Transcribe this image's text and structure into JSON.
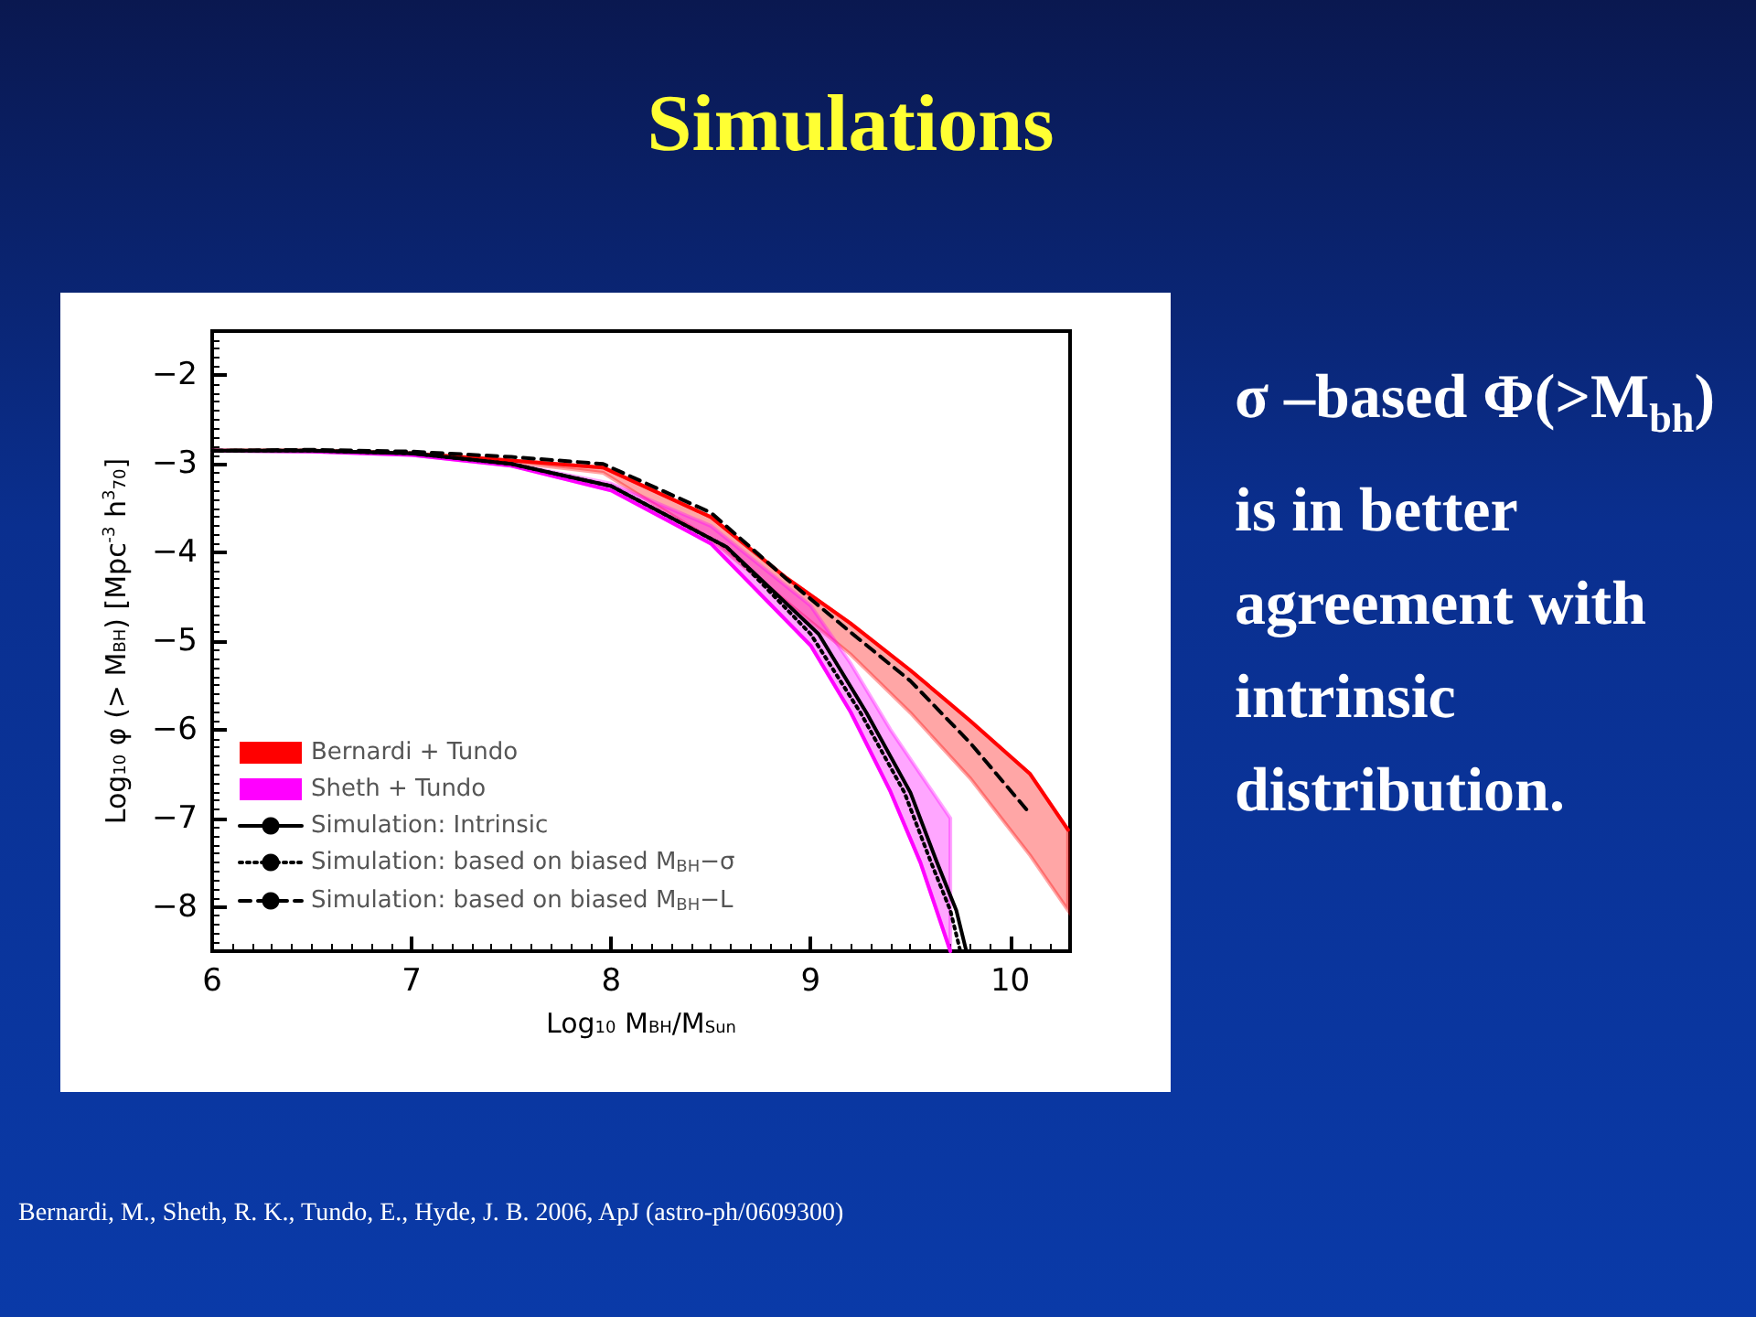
{
  "chart_data": {
    "type": "line",
    "title": "Simulations",
    "xlabel": "Log$_{10}$ M$_{BH}$/M$_{Sun}$",
    "ylabel": "Log$_{10}$ φ (> M$_{BH}$) [Mpc$^{-3}$ h$^{3}$$_{70}$]",
    "annotations": [
      "σ –based Φ(>M$_{bh}$) is in better agreement with intrinsic distribution.",
      "Bernardi, M., Sheth, R. K., Tundo, E., Hyde, J. B. 2006, ApJ (astro-ph/0609300)"
    ],
    "xlim": [
      6,
      10.3
    ],
    "xticks": [
      6,
      7,
      8,
      9,
      10
    ],
    "ylim": [
      -8.5,
      -1.5
    ],
    "yticks": [
      -2,
      -3,
      -4,
      -5,
      -6,
      -7,
      -8
    ],
    "grid": false,
    "legend": "bottom left",
    "marker": "none",
    "series": [
      {
        "name": "Bernardi + Tundo",
        "color": "#ff0000",
        "line_style": "solid",
        "x": [
          6,
          6.5,
          7,
          7.5,
          7.96,
          8.5,
          8.88,
          9.2,
          9.5,
          9.8,
          10.1,
          10.29
        ],
        "values": [
          -2.85,
          -2.85,
          -2.88,
          -2.96,
          -3.04,
          -3.6,
          -4.29,
          -4.8,
          -5.33,
          -5.9,
          -6.5,
          -7.13
        ],
        "lower": [
          -2.85,
          -2.85,
          -2.88,
          -2.98,
          -3.1,
          -3.85,
          -4.56,
          -5.15,
          -5.81,
          -6.55,
          -7.42,
          -8.04
        ],
        "upper": [
          -2.85,
          -2.85,
          -2.88,
          -2.96,
          -3.04,
          -3.6,
          -4.29,
          -4.8,
          -5.33,
          -5.9,
          -6.5,
          -7.13
        ]
      },
      {
        "name": "Sheth + Tundo",
        "color": "#ff00ff",
        "line_style": "solid",
        "x": [
          6,
          6.5,
          7,
          7.5,
          8,
          8.5,
          9,
          9.2,
          9.4,
          9.55,
          9.7
        ],
        "values": [
          -2.85,
          -2.86,
          -2.9,
          -3.02,
          -3.3,
          -3.9,
          -5.05,
          -5.8,
          -6.7,
          -7.5,
          -8.5
        ],
        "lower": [
          -2.85,
          -2.86,
          -2.9,
          -3.02,
          -3.3,
          -3.9,
          -5.05,
          -5.8,
          -6.7,
          -7.5,
          -8.5
        ],
        "upper": [
          -2.85,
          -2.86,
          -2.9,
          -3.0,
          -3.22,
          -3.7,
          -4.6,
          -5.25,
          -6.0,
          -6.5,
          -7.0
        ]
      },
      {
        "name": "Simulation: Intrinsic",
        "color": "#000000",
        "line_style": "solid",
        "x": [
          6,
          6.5,
          7,
          7.5,
          8,
          8.58,
          9.04,
          9.28,
          9.5,
          9.63,
          9.73,
          9.78
        ],
        "values": [
          -2.85,
          -2.85,
          -2.88,
          -3.0,
          -3.25,
          -3.94,
          -4.92,
          -5.81,
          -6.71,
          -7.48,
          -8.04,
          -8.5
        ]
      },
      {
        "name": "Simulation: based on biased M$_{BH}$−σ",
        "color": "#000000",
        "line_style": "dotted",
        "x": [
          6,
          6.5,
          7,
          7.5,
          8,
          8.58,
          9.0,
          9.25,
          9.47,
          9.6,
          9.7,
          9.75
        ],
        "values": [
          -2.85,
          -2.85,
          -2.88,
          -3.0,
          -3.25,
          -3.94,
          -4.92,
          -5.81,
          -6.71,
          -7.48,
          -8.04,
          -8.5
        ]
      },
      {
        "name": "Simulation: based on biased M$_{BH}$−L",
        "color": "#000000",
        "line_style": "dashed",
        "x": [
          6,
          6.5,
          7,
          7.5,
          7.96,
          8.5,
          8.88,
          9.2,
          9.5,
          9.8,
          10.1
        ],
        "values": [
          -2.85,
          -2.84,
          -2.86,
          -2.92,
          -3.0,
          -3.55,
          -4.3,
          -4.9,
          -5.45,
          -6.15,
          -6.95
        ]
      }
    ]
  }
}
